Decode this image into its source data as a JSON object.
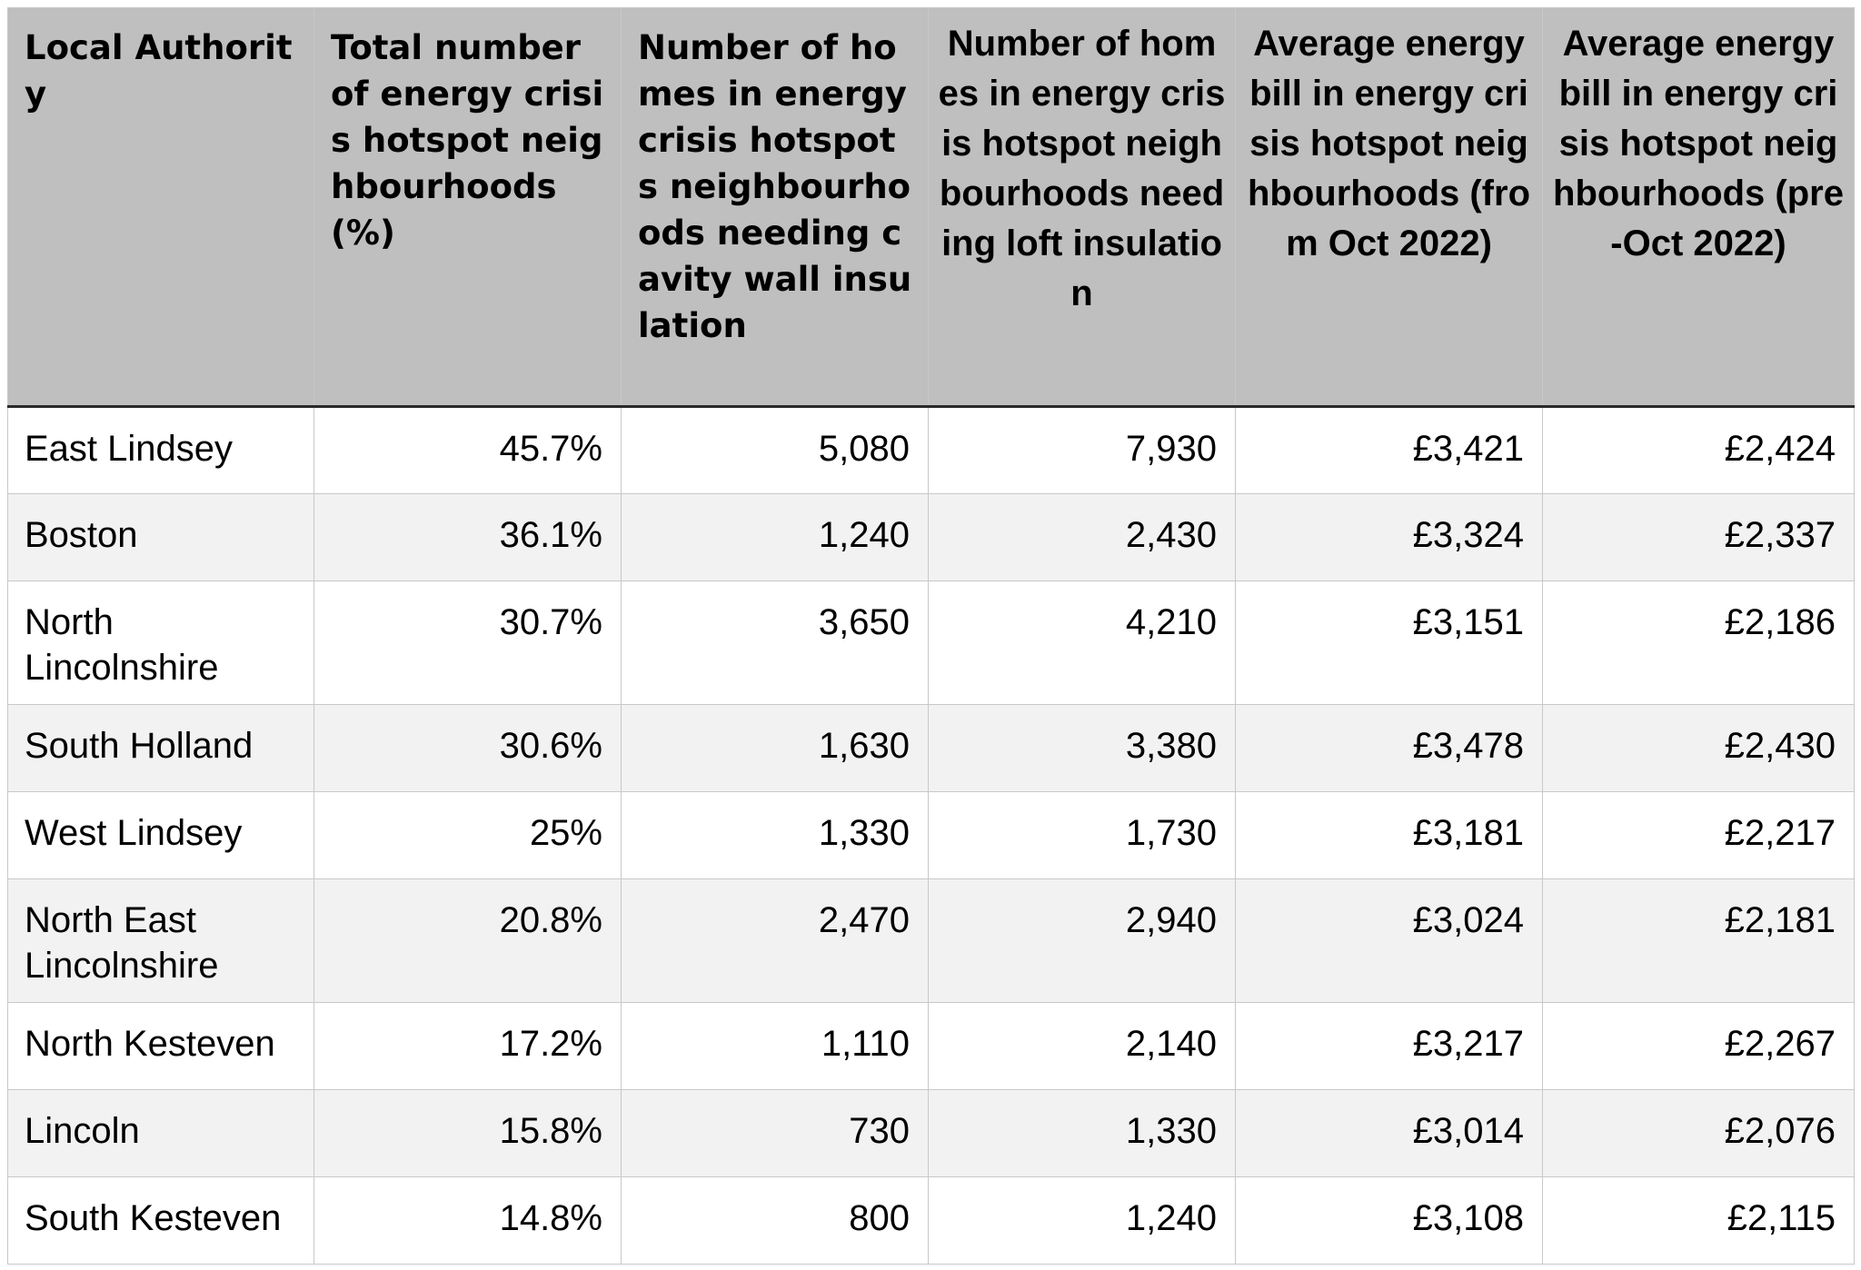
{
  "table": {
    "headers": [
      "Local Authority",
      "Total number of energy crisis hotspot neighbourhoods (%)",
      "Number of homes in energy crisis hotspots neighbourhoods needing cavity wall insulation",
      "Number of homes in energy crisis hotspot neighbourhoods needing loft insulation",
      "Average energy bill in energy crisis hotspot neighbourhoods (from Oct 2022)",
      "Average energy bill in energy crisis hotspot neighbourhoods (pre-Oct 2022)"
    ],
    "rows": [
      {
        "authority": "East Lindsey",
        "pct": "45.7%",
        "cavity": "5,080",
        "loft": "7,930",
        "bill_from": "£3,421",
        "bill_pre": "£2,424"
      },
      {
        "authority": "Boston",
        "pct": "36.1%",
        "cavity": "1,240",
        "loft": "2,430",
        "bill_from": "£3,324",
        "bill_pre": "£2,337"
      },
      {
        "authority": "North Lincolnshire",
        "pct": "30.7%",
        "cavity": "3,650",
        "loft": "4,210",
        "bill_from": "£3,151",
        "bill_pre": "£2,186"
      },
      {
        "authority": "South Holland",
        "pct": "30.6%",
        "cavity": "1,630",
        "loft": "3,380",
        "bill_from": "£3,478",
        "bill_pre": "£2,430"
      },
      {
        "authority": "West Lindsey",
        "pct": "25%",
        "cavity": "1,330",
        "loft": "1,730",
        "bill_from": "£3,181",
        "bill_pre": "£2,217"
      },
      {
        "authority": "North East Lincolnshire",
        "pct": "20.8%",
        "cavity": "2,470",
        "loft": "2,940",
        "bill_from": "£3,024",
        "bill_pre": "£2,181"
      },
      {
        "authority": "North Kesteven",
        "pct": "17.2%",
        "cavity": "1,110",
        "loft": "2,140",
        "bill_from": "£3,217",
        "bill_pre": "£2,267"
      },
      {
        "authority": "Lincoln",
        "pct": "15.8%",
        "cavity": "730",
        "loft": "1,330",
        "bill_from": "£3,014",
        "bill_pre": "£2,076"
      },
      {
        "authority": "South Kesteven",
        "pct": "14.8%",
        "cavity": "800",
        "loft": "1,240",
        "bill_from": "£3,108",
        "bill_pre": "£2,115"
      }
    ]
  }
}
